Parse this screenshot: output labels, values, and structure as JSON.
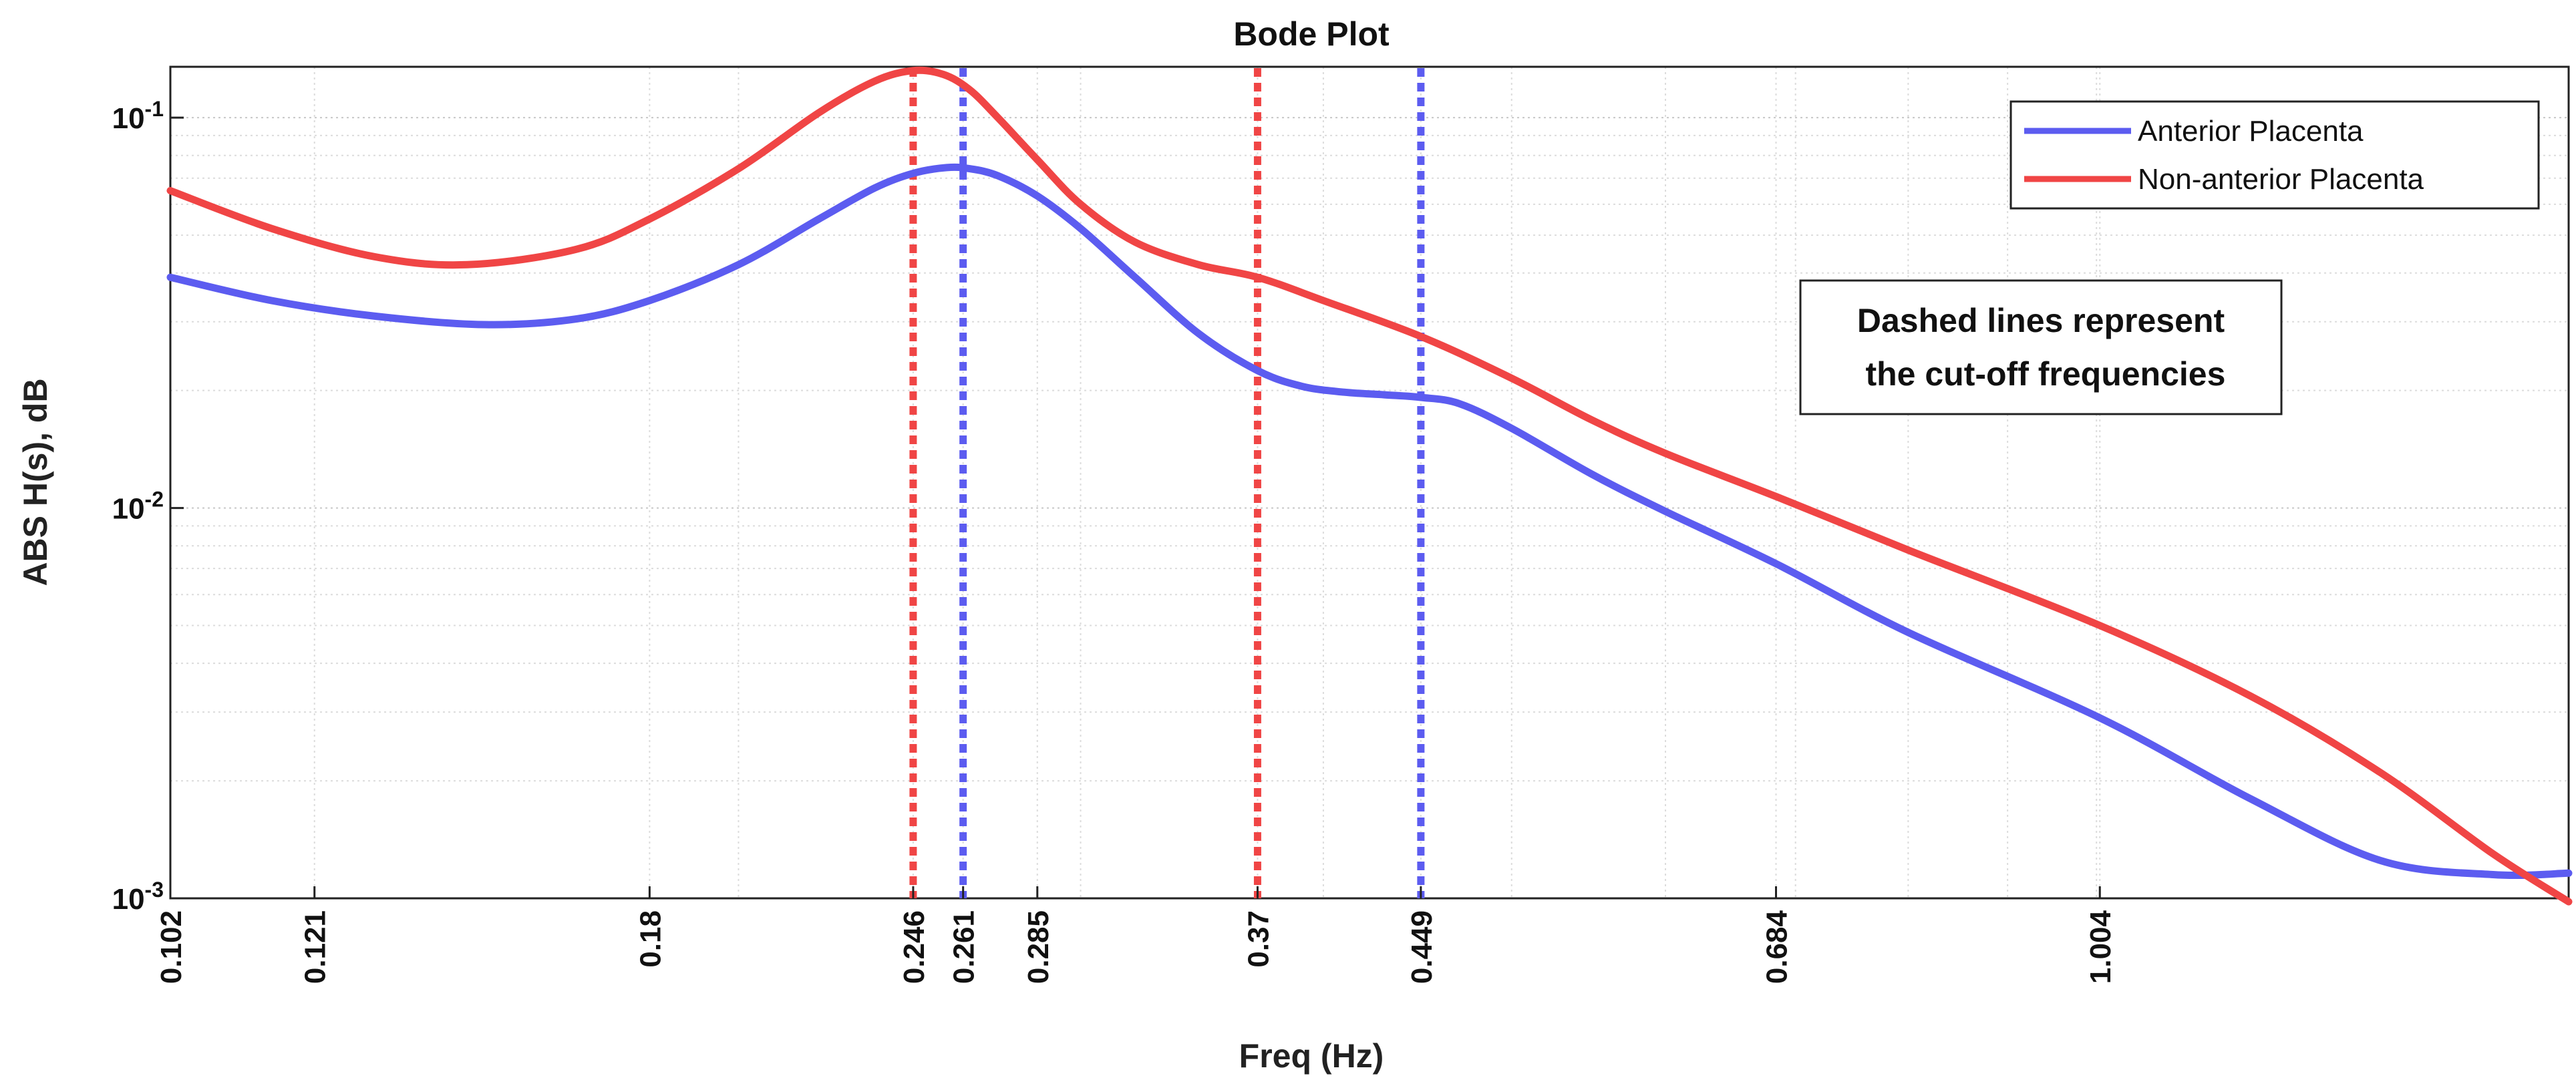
{
  "chart_data": {
    "type": "line",
    "title": "Bode Plot",
    "xlabel": "Freq (Hz)",
    "ylabel": "ABS H(s), dB",
    "x_scale": "log",
    "y_scale": "log",
    "xlim": [
      0.102,
      1.75
    ],
    "ylim": [
      0.001,
      0.135
    ],
    "grid": true,
    "x_ticks": [
      "0.102",
      "0.121",
      "0.18",
      "0.246",
      "0.261",
      "0.285",
      "0.37",
      "0.449",
      "0.684",
      "1.004"
    ],
    "y_ticks": [
      {
        "base": "10",
        "exp": "-3",
        "value": 0.001
      },
      {
        "base": "10",
        "exp": "-2",
        "value": 0.01
      },
      {
        "base": "10",
        "exp": "-1",
        "value": 0.1
      }
    ],
    "series": [
      {
        "name": "Anterior Placenta",
        "color": "#5c5cf0",
        "x": [
          0.102,
          0.115,
          0.13,
          0.148,
          0.165,
          0.18,
          0.2,
          0.22,
          0.235,
          0.246,
          0.256,
          0.263,
          0.272,
          0.285,
          0.3,
          0.32,
          0.345,
          0.37,
          0.39,
          0.41,
          0.43,
          0.449,
          0.47,
          0.5,
          0.55,
          0.6,
          0.684,
          0.8,
          1.004,
          1.2,
          1.4,
          1.6,
          1.75
        ],
        "values": [
          0.039,
          0.034,
          0.031,
          0.0295,
          0.0305,
          0.034,
          0.042,
          0.055,
          0.066,
          0.072,
          0.0745,
          0.074,
          0.071,
          0.063,
          0.052,
          0.039,
          0.028,
          0.0225,
          0.0205,
          0.0198,
          0.0195,
          0.0192,
          0.0185,
          0.016,
          0.0122,
          0.0098,
          0.0072,
          0.0048,
          0.0029,
          0.0018,
          0.00125,
          0.00115,
          0.00116
        ]
      },
      {
        "name": "Non-anterior Placenta",
        "color": "#f04545",
        "x": [
          0.102,
          0.115,
          0.13,
          0.145,
          0.165,
          0.18,
          0.2,
          0.22,
          0.235,
          0.246,
          0.255,
          0.263,
          0.272,
          0.285,
          0.3,
          0.32,
          0.345,
          0.37,
          0.4,
          0.449,
          0.5,
          0.55,
          0.6,
          0.684,
          0.8,
          1.004,
          1.2,
          1.4,
          1.6,
          1.75
        ],
        "values": [
          0.065,
          0.052,
          0.044,
          0.042,
          0.046,
          0.055,
          0.074,
          0.103,
          0.124,
          0.132,
          0.129,
          0.118,
          0.1,
          0.078,
          0.06,
          0.048,
          0.042,
          0.039,
          0.034,
          0.0275,
          0.0215,
          0.0168,
          0.0138,
          0.0107,
          0.0078,
          0.005,
          0.0033,
          0.0021,
          0.0013,
          0.00098
        ]
      }
    ],
    "cutoff_lines": [
      {
        "series": "Non-anterior Placenta",
        "x": 0.246,
        "color": "#f04545"
      },
      {
        "series": "Anterior Placenta",
        "x": 0.261,
        "color": "#5c5cf0"
      },
      {
        "series": "Non-anterior Placenta",
        "x": 0.37,
        "color": "#f04545"
      },
      {
        "series": "Anterior Placenta",
        "x": 0.449,
        "color": "#5c5cf0"
      }
    ],
    "legend": {
      "position": "top-right",
      "entries": [
        "Anterior Placenta",
        "Non-anterior Placenta"
      ]
    },
    "annotation": [
      "Dashed lines represent",
      " the cut-off frequencies"
    ]
  }
}
